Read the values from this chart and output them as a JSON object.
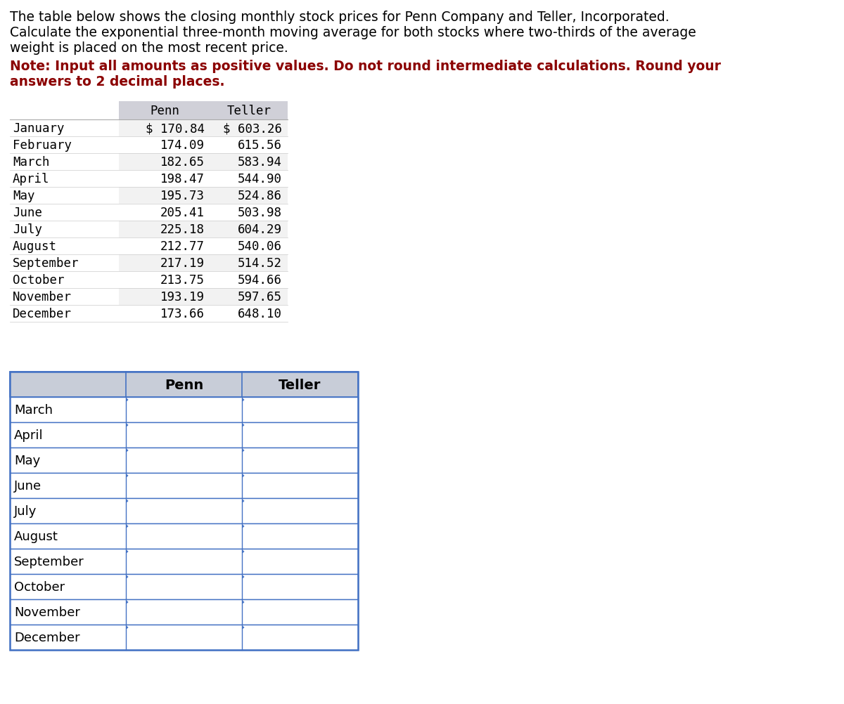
{
  "title_text_line1": "The table below shows the closing monthly stock prices for Penn Company and Teller, Incorporated.",
  "title_text_line2": "Calculate the exponential three-month moving average for both stocks where two-thirds of the average",
  "title_text_line3": "weight is placed on the most recent price.",
  "note_text_line1": "Note: Input all amounts as positive values. Do not round intermediate calculations. Round your",
  "note_text_line2": "answers to 2 decimal places.",
  "title_color": "#000000",
  "note_color": "#8B0000",
  "months_data": [
    "January",
    "February",
    "March",
    "April",
    "May",
    "June",
    "July",
    "August",
    "September",
    "October",
    "November",
    "December"
  ],
  "penn_data": [
    "$ 170.84",
    "174.09",
    "182.65",
    "198.47",
    "195.73",
    "205.41",
    "225.18",
    "212.77",
    "217.19",
    "213.75",
    "193.19",
    "173.66"
  ],
  "teller_data": [
    "$ 603.26",
    "615.56",
    "583.94",
    "544.90",
    "524.86",
    "503.98",
    "604.29",
    "540.06",
    "514.52",
    "594.66",
    "597.65",
    "648.10"
  ],
  "months_answer": [
    "March",
    "April",
    "May",
    "June",
    "July",
    "August",
    "September",
    "October",
    "November",
    "December"
  ],
  "table1_header_color": "#D0D0D8",
  "table2_header_color": "#C8CDD8",
  "row_bg_light": "#F2F2F2",
  "row_bg_white": "#FFFFFF",
  "border_color": "#4472C4",
  "grid_color": "#888888",
  "font_size_title": 13.5,
  "font_size_note": 13.5,
  "font_size_table1": 12.5,
  "font_size_table2": 13,
  "monospace_font": "DejaVu Sans Mono",
  "sans_font": "DejaVu Sans"
}
